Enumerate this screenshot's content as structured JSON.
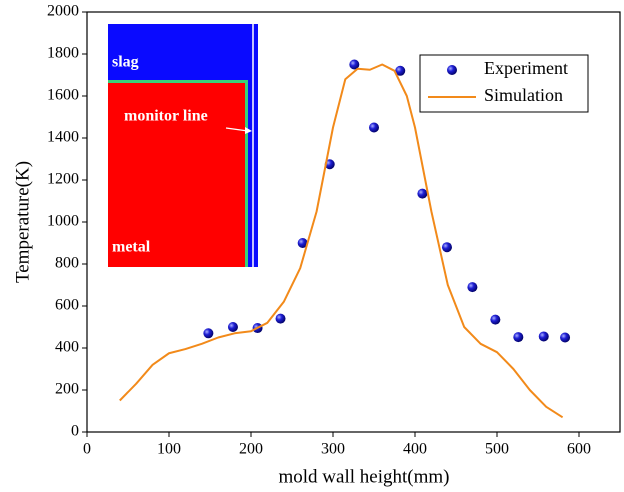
{
  "chart_data": {
    "type": "line",
    "xlabel": "mold wall height(mm)",
    "ylabel": "Temperature(K)",
    "xlim": [
      0,
      650
    ],
    "ylim": [
      0,
      2000
    ],
    "xticks": [
      0,
      100,
      200,
      300,
      400,
      500,
      600
    ],
    "yticks": [
      0,
      200,
      400,
      600,
      800,
      1000,
      1200,
      1400,
      1600,
      1800,
      2000
    ],
    "legend": "upper right",
    "series": [
      {
        "name": "Experiment",
        "color": "#1f1fd6",
        "style": "marker",
        "x": [
          148,
          178,
          208,
          236,
          263,
          296,
          326,
          350,
          382,
          409,
          439,
          470,
          498,
          526,
          557,
          583
        ],
        "values": [
          470,
          500,
          495,
          540,
          900,
          1275,
          1750,
          1450,
          1720,
          1135,
          880,
          690,
          535,
          452,
          455,
          450
        ]
      },
      {
        "name": "Simulation",
        "color": "#f28a1a",
        "style": "line",
        "x": [
          40,
          60,
          80,
          100,
          120,
          140,
          160,
          180,
          200,
          220,
          240,
          260,
          280,
          300,
          315,
          330,
          345,
          360,
          375,
          390,
          400,
          420,
          440,
          460,
          480,
          500,
          520,
          540,
          560,
          580
        ],
        "values": [
          150,
          230,
          320,
          375,
          395,
          420,
          450,
          470,
          480,
          520,
          620,
          780,
          1050,
          1450,
          1680,
          1730,
          1725,
          1750,
          1720,
          1600,
          1450,
          1050,
          700,
          500,
          420,
          380,
          300,
          200,
          120,
          70
        ]
      }
    ],
    "inset": {
      "slag": "slag",
      "monitor": "monitor line",
      "metal": "metal"
    }
  }
}
